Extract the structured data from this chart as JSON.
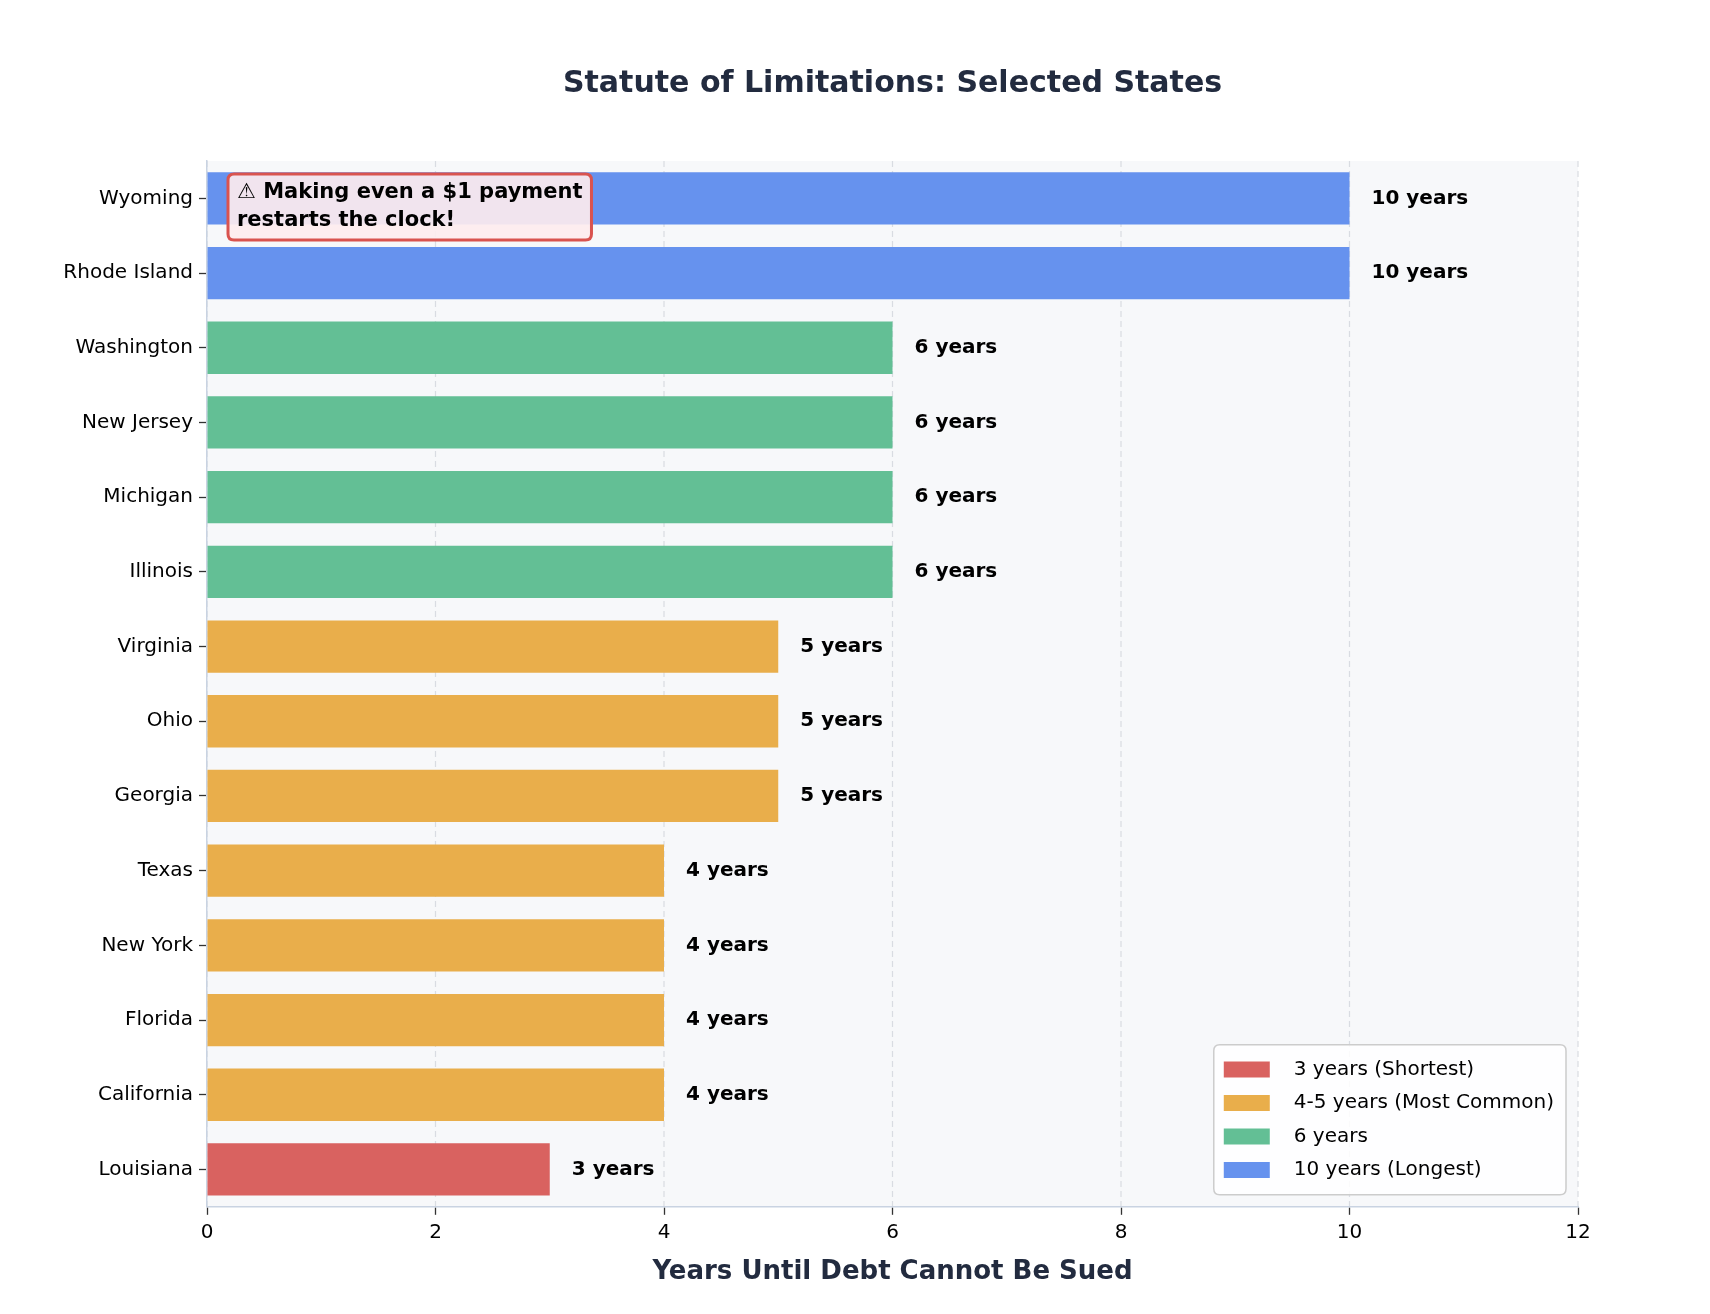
{
  "chart_data": {
    "type": "bar",
    "orientation": "horizontal",
    "title": "Statute of Limitations: Selected States",
    "xlabel": "Years Until Debt Cannot Be Sued",
    "categories": [
      "Wyoming",
      "Rhode Island",
      "Washington",
      "New Jersey",
      "Michigan",
      "Illinois",
      "Virginia",
      "Ohio",
      "Georgia",
      "Texas",
      "New York",
      "Florida",
      "California",
      "Louisiana"
    ],
    "series": [
      {
        "name": "3 years (Shortest)",
        "color": "#d96260",
        "values": [
          null,
          null,
          null,
          null,
          null,
          null,
          null,
          null,
          null,
          null,
          null,
          null,
          null,
          3
        ],
        "value_labels": [
          null,
          null,
          null,
          null,
          null,
          null,
          null,
          null,
          null,
          null,
          null,
          null,
          null,
          "3 years"
        ]
      },
      {
        "name": "4-5 years (Most Common)",
        "color": "#e9ae4b",
        "values": [
          null,
          null,
          null,
          null,
          null,
          null,
          5,
          5,
          5,
          4,
          4,
          4,
          4,
          null
        ],
        "value_labels": [
          null,
          null,
          null,
          null,
          null,
          null,
          "5 years",
          "5 years",
          "5 years",
          "4 years",
          "4 years",
          "4 years",
          "4 years",
          null
        ]
      },
      {
        "name": "6 years",
        "color": "#63bf95",
        "values": [
          null,
          null,
          6,
          6,
          6,
          6,
          null,
          null,
          null,
          null,
          null,
          null,
          null,
          null
        ],
        "value_labels": [
          null,
          null,
          "6 years",
          "6 years",
          "6 years",
          "6 years",
          null,
          null,
          null,
          null,
          null,
          null,
          null,
          null
        ]
      },
      {
        "name": "10 years (Longest)",
        "color": "#6692ee",
        "values": [
          10,
          10,
          null,
          null,
          null,
          null,
          null,
          null,
          null,
          null,
          null,
          null,
          null,
          null
        ],
        "value_labels": [
          "10 years",
          "10 years",
          null,
          null,
          null,
          null,
          null,
          null,
          null,
          null,
          null,
          null,
          null,
          null
        ]
      }
    ],
    "xlim": [
      0,
      12
    ],
    "xticks": [
      0,
      2,
      4,
      6,
      8,
      10,
      12
    ],
    "grid": "x",
    "legend": "bottom right",
    "annotations": [
      "⚠ Making even a $1 payment\nrestarts the clock!"
    ]
  }
}
